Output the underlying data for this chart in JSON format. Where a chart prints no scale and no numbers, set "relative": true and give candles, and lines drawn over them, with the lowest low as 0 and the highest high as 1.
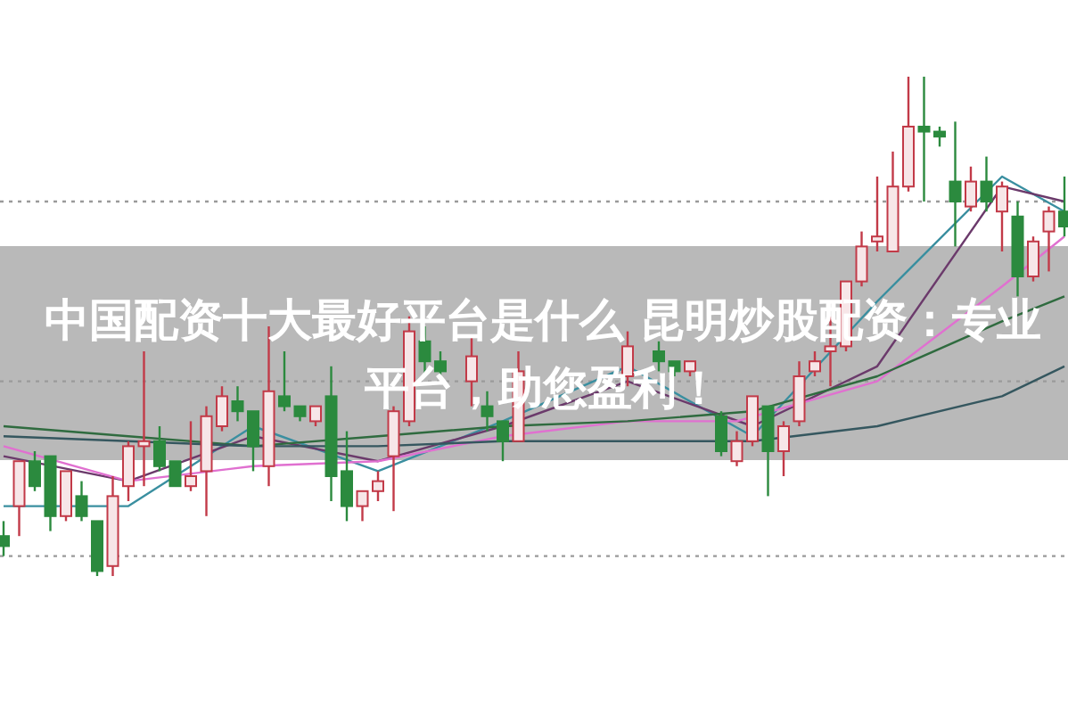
{
  "chart_data": {
    "type": "candlestick",
    "relative": true,
    "title": "中国配资十大最好平台是什么 昆明炒股配资：专业平台，助您盈利！",
    "categories": [
      null,
      null,
      null,
      null,
      null,
      null,
      null,
      null,
      null,
      null,
      null,
      null,
      null,
      null,
      null,
      null,
      null,
      null,
      null,
      null,
      null,
      null,
      null,
      null,
      null,
      null,
      null,
      null,
      null,
      null,
      null,
      null,
      null,
      null,
      null,
      null,
      null,
      null,
      null,
      null,
      null,
      null,
      null,
      null,
      null,
      null,
      null,
      null,
      null,
      null,
      null,
      null,
      null,
      null,
      null,
      null,
      null,
      null,
      null,
      null,
      null,
      null,
      null,
      null,
      null,
      null,
      null,
      null,
      null
    ],
    "ohlc": [
      [
        0.08,
        0.11,
        0.04,
        0.06
      ],
      [
        0.14,
        0.23,
        0.08,
        0.23
      ],
      [
        0.23,
        0.25,
        0.17,
        0.18
      ],
      [
        0.24,
        0.24,
        0.09,
        0.12
      ],
      [
        0.12,
        0.21,
        0.11,
        0.21
      ],
      [
        0.16,
        0.19,
        0.11,
        0.12
      ],
      [
        0.11,
        0.11,
        0,
        0.01
      ],
      [
        0.02,
        0.2,
        0,
        0.16
      ],
      [
        0.18,
        0.27,
        0.15,
        0.26
      ],
      [
        0.26,
        0.45,
        0.18,
        0.27
      ],
      [
        0.27,
        0.3,
        0.21,
        0.22
      ],
      [
        0.23,
        0.23,
        0.18,
        0.18
      ],
      [
        0.18,
        0.31,
        0.17,
        0.2
      ],
      [
        0.21,
        0.34,
        0.12,
        0.32
      ],
      [
        0.3,
        0.38,
        0.29,
        0.36
      ],
      [
        0.35,
        0.38,
        0.31,
        0.33
      ],
      [
        0.33,
        0.33,
        0.21,
        0.26
      ],
      [
        0.22,
        0.5,
        0.18,
        0.37
      ],
      [
        0.36,
        0.45,
        0.33,
        0.34
      ],
      [
        0.34,
        0.34,
        0.31,
        0.32
      ],
      [
        0.31,
        0.34,
        0.3,
        0.34
      ],
      [
        0.36,
        0.42,
        0.15,
        0.2
      ],
      [
        0.21,
        0.29,
        0.11,
        0.14
      ],
      [
        0.14,
        0.17,
        0.11,
        0.17
      ],
      [
        0.17,
        0.21,
        0.15,
        0.19
      ],
      [
        0.24,
        0.34,
        0.13,
        0.33
      ],
      [
        0.31,
        0.52,
        0.3,
        0.49
      ],
      [
        0.47,
        0.5,
        0.4,
        0.43
      ],
      [
        0.43,
        0.45,
        0.4,
        0.41
      ],
      null,
      [
        0.39,
        0.48,
        0.34,
        0.44
      ],
      [
        0.34,
        0.37,
        0.29,
        0.32
      ],
      [
        0.31,
        0.31,
        0.23,
        0.27
      ],
      [
        0.27,
        0.45,
        0.27,
        0.41
      ],
      null,
      null,
      null,
      null,
      null,
      null,
      [
        0.4,
        0.49,
        0.38,
        0.46
      ],
      null,
      [
        0.45,
        0.47,
        0.41,
        0.43
      ],
      [
        0.43,
        0.43,
        0.4,
        0.41
      ],
      [
        0.41,
        0.43,
        0.4,
        0.43
      ],
      null,
      [
        0.32,
        0.33,
        0.24,
        0.25
      ],
      [
        0.23,
        0.29,
        0.22,
        0.27
      ],
      [
        0.27,
        0.36,
        0.26,
        0.36
      ],
      [
        0.34,
        0.34,
        0.16,
        0.25
      ],
      [
        0.25,
        0.31,
        0.2,
        0.3
      ],
      [
        0.31,
        0.43,
        0.3,
        0.4
      ],
      [
        0.41,
        0.45,
        0.4,
        0.43
      ],
      [
        0.45,
        0.52,
        0.38,
        0.46
      ],
      [
        0.46,
        0.59,
        0.45,
        0.59
      ],
      [
        0.59,
        0.69,
        0.58,
        0.66
      ],
      [
        0.67,
        0.8,
        0.65,
        0.68
      ],
      [
        0.65,
        0.85,
        0.65,
        0.78
      ],
      [
        0.78,
        1,
        0.77,
        0.9
      ],
      [
        0.9,
        1,
        0.75,
        0.89
      ],
      [
        0.89,
        0.9,
        0.86,
        0.88
      ],
      [
        0.79,
        0.91,
        0.66,
        0.75
      ],
      [
        0.74,
        0.82,
        0.73,
        0.79
      ],
      [
        0.79,
        0.84,
        0.73,
        0.75
      ],
      [
        0.73,
        0.79,
        0.65,
        0.78
      ],
      [
        0.72,
        0.75,
        0.56,
        0.6
      ],
      [
        0.6,
        0.68,
        0.59,
        0.67
      ],
      [
        0.69,
        0.74,
        0.61,
        0.73
      ],
      [
        0.73,
        0.8,
        0.68,
        0.7
      ]
    ],
    "colors": [
      "#2b8a3e",
      "#c23a48",
      "#2b8a3e",
      "#2b8a3e",
      "#c23a48",
      "#2b8a3e",
      "#2b8a3e",
      "#c23a48",
      "#c23a48",
      "#c23a48",
      "#2b8a3e",
      "#2b8a3e",
      "#c23a48",
      "#c23a48",
      "#c23a48",
      "#2b8a3e",
      "#2b8a3e",
      "#c23a48",
      "#2b8a3e",
      "#2b8a3e",
      "#c23a48",
      "#2b8a3e",
      "#2b8a3e",
      "#c23a48",
      "#c23a48",
      "#c23a48",
      "#c23a48",
      "#2b8a3e",
      "#2b8a3e",
      null,
      "#c23a48",
      "#2b8a3e",
      "#2b8a3e",
      "#c23a48",
      null,
      null,
      null,
      null,
      null,
      null,
      "#c23a48",
      null,
      "#2b8a3e",
      "#2b8a3e",
      "#c23a48",
      null,
      "#2b8a3e",
      "#c23a48",
      "#c23a48",
      "#2b8a3e",
      "#c23a48",
      "#c23a48",
      "#c23a48",
      "#c23a48",
      "#c23a48",
      "#c23a48",
      "#c23a48",
      "#c23a48",
      "#c23a48",
      "#2b8a3e",
      "#2b8a3e",
      "#2b8a3e",
      "#c23a48",
      "#2b8a3e",
      "#c23a48",
      "#2b8a3e",
      "#c23a48",
      "#c23a48",
      "#2b8a3e"
    ],
    "series": [
      {
        "type": "line",
        "color": "#3a8fa0",
        "values": [
          0.14,
          null,
          null,
          null,
          null,
          null,
          null,
          null,
          0.14,
          null,
          null,
          null,
          null,
          null,
          null,
          null,
          0.3,
          null,
          null,
          null,
          null,
          null,
          null,
          null,
          0.21,
          null,
          null,
          null,
          null,
          null,
          null,
          null,
          0.31,
          null,
          null,
          null,
          null,
          null,
          null,
          null,
          0.42,
          null,
          null,
          null,
          null,
          null,
          null,
          null,
          0.28,
          null,
          null,
          null,
          null,
          null,
          null,
          null,
          0.55,
          null,
          null,
          null,
          null,
          null,
          null,
          null,
          0.8,
          null,
          null,
          null,
          0.73
        ]
      },
      {
        "type": "line",
        "color": "#6b3a6b",
        "values": [
          0.24,
          null,
          null,
          null,
          null,
          null,
          null,
          null,
          0.19,
          null,
          null,
          null,
          null,
          null,
          null,
          null,
          0.28,
          null,
          null,
          null,
          null,
          null,
          null,
          null,
          0.23,
          null,
          null,
          null,
          null,
          null,
          null,
          null,
          0.3,
          null,
          null,
          null,
          null,
          null,
          null,
          null,
          0.39,
          null,
          null,
          null,
          null,
          null,
          null,
          null,
          0.3,
          null,
          null,
          null,
          null,
          null,
          null,
          null,
          0.42,
          null,
          null,
          null,
          null,
          null,
          null,
          null,
          0.78,
          null,
          null,
          null,
          0.75
        ]
      },
      {
        "type": "line",
        "color": "#e070d0",
        "values": [
          0.26,
          null,
          null,
          null,
          null,
          null,
          null,
          null,
          0.19,
          null,
          null,
          null,
          null,
          null,
          null,
          null,
          0.22,
          null,
          null,
          null,
          null,
          null,
          null,
          null,
          0.23,
          null,
          null,
          null,
          null,
          null,
          null,
          null,
          0.28,
          null,
          null,
          null,
          null,
          null,
          null,
          null,
          0.31,
          null,
          null,
          null,
          null,
          null,
          null,
          0.31,
          null,
          null,
          null,
          null,
          null,
          null,
          null,
          null,
          0.39,
          null,
          null,
          null,
          null,
          null,
          null,
          null,
          0.58,
          null,
          null,
          null,
          0.68
        ]
      },
      {
        "type": "line",
        "color": "#2f6b3f",
        "values": [
          0.3,
          null,
          null,
          null,
          null,
          null,
          null,
          null,
          0.28,
          null,
          null,
          null,
          null,
          null,
          null,
          null,
          0.26,
          null,
          null,
          null,
          null,
          null,
          null,
          null,
          0.28,
          null,
          null,
          null,
          null,
          null,
          null,
          null,
          0.3,
          null,
          null,
          null,
          null,
          null,
          null,
          null,
          0.31,
          null,
          null,
          null,
          null,
          null,
          null,
          null,
          0.33,
          null,
          null,
          null,
          null,
          null,
          null,
          null,
          0.4,
          null,
          null,
          null,
          null,
          null,
          null,
          null,
          0.51,
          null,
          null,
          null,
          0.56
        ]
      },
      {
        "type": "line",
        "color": "#35575f",
        "values": [
          0.28,
          null,
          null,
          null,
          null,
          null,
          null,
          null,
          0.27,
          null,
          null,
          null,
          null,
          null,
          null,
          null,
          0.26,
          null,
          null,
          null,
          null,
          null,
          null,
          null,
          0.26,
          null,
          null,
          null,
          null,
          null,
          null,
          null,
          0.27,
          null,
          null,
          null,
          null,
          null,
          null,
          null,
          0.27,
          null,
          null,
          null,
          null,
          null,
          null,
          null,
          0.27,
          null,
          null,
          null,
          null,
          null,
          null,
          null,
          0.3,
          null,
          null,
          null,
          null,
          null,
          null,
          null,
          0.36,
          null,
          null,
          null,
          0.42
        ]
      }
    ],
    "ref_lines": [
      {
        "axis": "y",
        "value": 0.75,
        "line_style": "dotted",
        "color": "#9a9a9a"
      },
      {
        "axis": "y",
        "value": 0.39,
        "line_style": "dotted",
        "color": "#9a9a9a"
      },
      {
        "axis": "y",
        "value": 0.04,
        "line_style": "dotted",
        "color": "#9a9a9a"
      }
    ]
  }
}
